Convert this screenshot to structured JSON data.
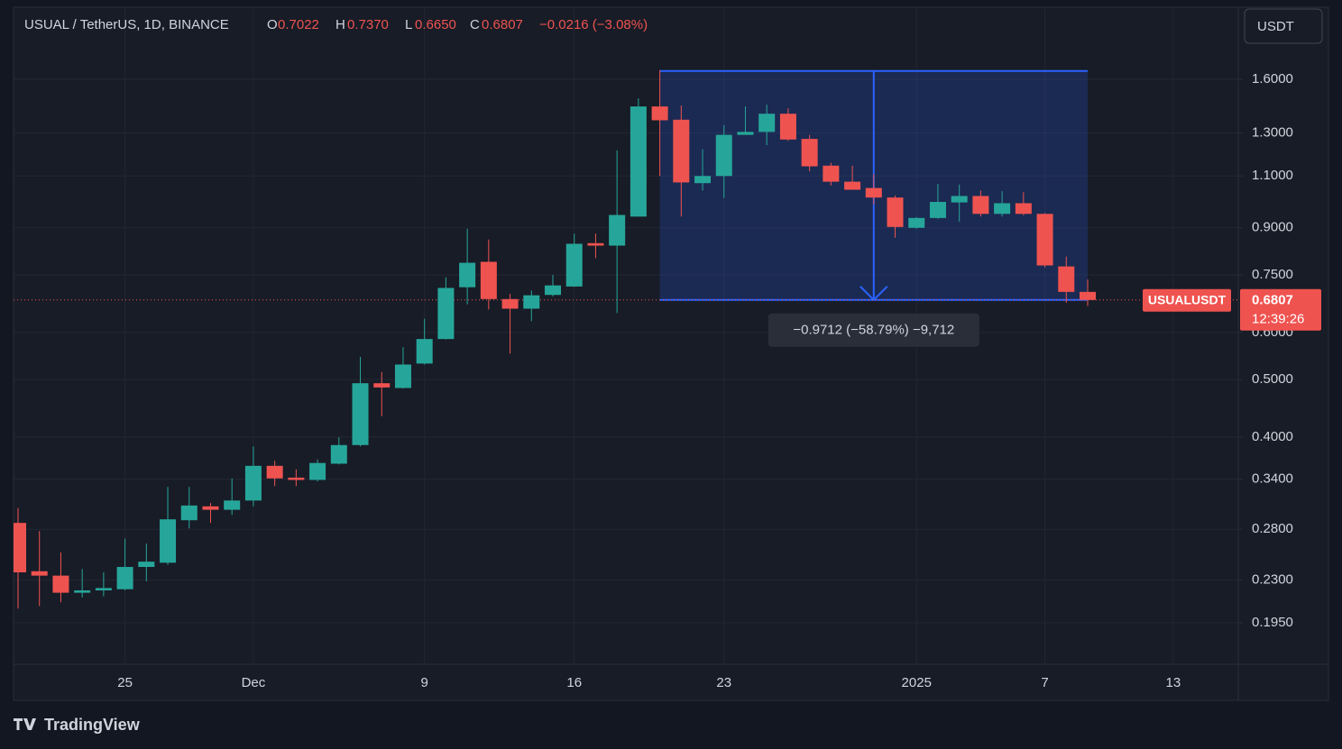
{
  "header": {
    "symbol": "USUAL / TetherUS, 1D, BINANCE",
    "o": "O",
    "open": "0.7022",
    "h": "H",
    "high": "0.7370",
    "l": "L",
    "low": "0.6650",
    "c": "C",
    "close": "0.6807",
    "change": "−0.0216 (−3.08%)"
  },
  "currency_button": "USDT",
  "brand": "TradingView",
  "chart_data": {
    "type": "candlestick",
    "log_scale": true,
    "grid": true,
    "up_color": "#26a69a",
    "down_color": "#ef5350",
    "categories": [
      null,
      null,
      null,
      null,
      null,
      "25",
      null,
      null,
      null,
      null,
      null,
      "Dec",
      null,
      null,
      null,
      null,
      null,
      null,
      null,
      "9",
      null,
      null,
      null,
      null,
      null,
      null,
      "16",
      null,
      null,
      null,
      null,
      null,
      null,
      "23",
      null,
      null,
      null,
      null,
      null,
      null,
      null,
      null,
      "2025",
      null,
      null,
      null,
      null,
      null,
      "7",
      null,
      null,
      null,
      null,
      null,
      "13",
      null,
      null,
      null
    ],
    "open": [
      0.287,
      0.238,
      0.234,
      0.219,
      0.221,
      0.222,
      0.242,
      0.246,
      0.29,
      0.306,
      0.302,
      0.313,
      0.358,
      0.342,
      0.339,
      0.361,
      0.388,
      0.493,
      0.484,
      0.532,
      0.585,
      0.715,
      0.789,
      0.683,
      0.658,
      0.694,
      0.717,
      0.848,
      0.84,
      0.94,
      1.44,
      1.368,
      1.07,
      1.1,
      1.29,
      1.305,
      1.4,
      1.27,
      1.145,
      1.076,
      1.05,
      1.012,
      0.9,
      0.935,
      0.993,
      1.018,
      0.95,
      0.99,
      0.95,
      0.775,
      0.7022,
      null,
      null,
      null,
      null,
      null,
      null,
      null
    ],
    "high": [
      0.304,
      0.278,
      0.256,
      0.24,
      0.237,
      0.27,
      0.265,
      0.33,
      0.33,
      0.31,
      0.341,
      0.386,
      0.365,
      0.353,
      0.367,
      0.4,
      0.546,
      0.515,
      0.567,
      0.633,
      0.743,
      0.897,
      0.86,
      0.697,
      0.706,
      0.75,
      0.88,
      0.88,
      1.215,
      1.486,
      1.657,
      1.445,
      1.22,
      1.34,
      1.44,
      1.45,
      1.43,
      1.29,
      1.158,
      1.145,
      1.108,
      1.02,
      0.938,
      1.067,
      1.064,
      1.04,
      1.037,
      1.033,
      0.953,
      0.805,
      0.737,
      null,
      null,
      null,
      null,
      null,
      null,
      null
    ],
    "low": [
      0.206,
      0.208,
      0.211,
      0.215,
      0.216,
      0.221,
      0.229,
      0.244,
      0.281,
      0.287,
      0.296,
      0.306,
      0.331,
      0.331,
      0.337,
      0.36,
      0.386,
      0.434,
      0.483,
      0.53,
      0.584,
      0.669,
      0.656,
      0.553,
      0.627,
      0.69,
      0.716,
      0.8,
      0.647,
      0.94,
      1.1,
      0.94,
      1.04,
      1.01,
      1.29,
      1.24,
      1.26,
      1.12,
      1.06,
      1.043,
      0.985,
      0.866,
      0.897,
      0.932,
      0.922,
      0.94,
      0.94,
      0.945,
      0.772,
      0.673,
      0.665,
      null,
      null,
      null,
      null,
      null,
      null,
      null
    ],
    "close": [
      0.237,
      0.234,
      0.219,
      0.221,
      0.223,
      0.242,
      0.247,
      0.291,
      0.307,
      0.302,
      0.313,
      0.358,
      0.341,
      0.339,
      0.362,
      0.388,
      0.493,
      0.485,
      0.53,
      0.585,
      0.713,
      0.786,
      0.683,
      0.658,
      0.693,
      0.72,
      0.846,
      0.84,
      0.946,
      1.44,
      1.365,
      1.073,
      1.1,
      1.29,
      1.305,
      1.4,
      1.267,
      1.142,
      1.076,
      1.043,
      1.012,
      0.903,
      0.935,
      0.995,
      1.018,
      0.95,
      0.99,
      0.95,
      0.778,
      0.7022,
      0.6807,
      null,
      null,
      null,
      null,
      null,
      null,
      null
    ],
    "ylim": [
      0.166,
      2.115
    ],
    "yticks": [
      {
        "value": 1.6,
        "label": "1.6000"
      },
      {
        "value": 1.3,
        "label": "1.3000"
      },
      {
        "value": 1.1,
        "label": "1.1000"
      },
      {
        "value": 0.9,
        "label": "0.9000"
      },
      {
        "value": 0.75,
        "label": "0.7500"
      },
      {
        "value": 0.6,
        "label": "0.6000"
      },
      {
        "value": 0.5,
        "label": "0.5000"
      },
      {
        "value": 0.4,
        "label": "0.4000"
      },
      {
        "value": 0.34,
        "label": "0.3400"
      },
      {
        "value": 0.28,
        "label": "0.2800"
      },
      {
        "value": 0.23,
        "label": "0.2300"
      },
      {
        "value": 0.195,
        "label": "0.1950"
      }
    ],
    "price_label": {
      "symbol": "USUALUSDT",
      "countdown": "12:39:26"
    },
    "measure": {
      "label": "−0.9712 (−58.79%) −9,712",
      "high": 1.6519,
      "low": 0.6807
    }
  }
}
